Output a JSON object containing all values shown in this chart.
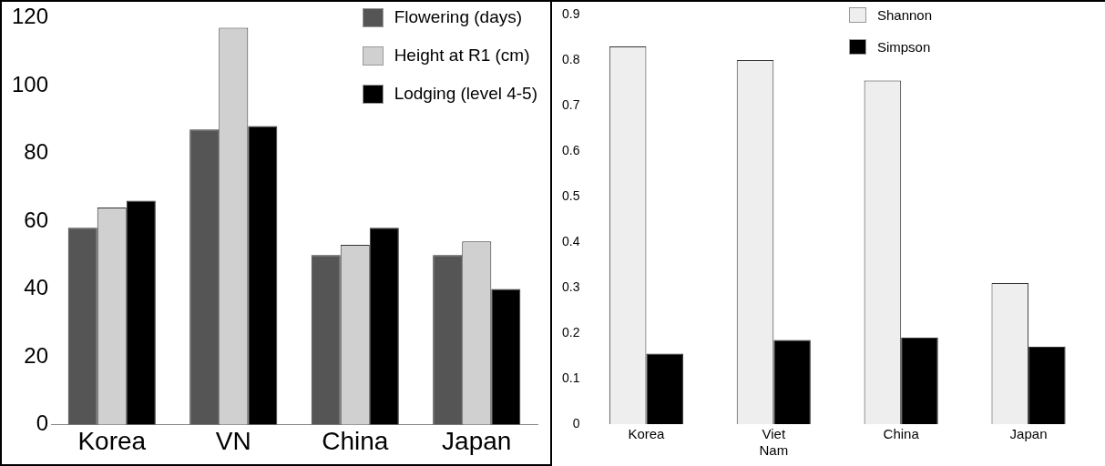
{
  "chart_data": [
    {
      "type": "bar",
      "categories": [
        "Korea",
        "VN",
        "China",
        "Japan"
      ],
      "series": [
        {
          "name": "Flowering (days)",
          "color": "#555555",
          "values": [
            58,
            87,
            50,
            50
          ]
        },
        {
          "name": "Height at R1 (cm)",
          "color": "#d0d0d0",
          "values": [
            64,
            117,
            53,
            54
          ]
        },
        {
          "name": "Lodging (level 4-5)",
          "color": "#000000",
          "values": [
            66,
            88,
            58,
            40
          ]
        }
      ],
      "ylim": [
        0,
        120
      ],
      "yticks": [
        0,
        20,
        40,
        60,
        80,
        100,
        120
      ],
      "grid": false,
      "legend": "top right"
    },
    {
      "type": "bar",
      "categories": [
        "Korea",
        "Viet Nam",
        "China",
        "Japan"
      ],
      "series": [
        {
          "name": "Shannon",
          "color": "#eeeeee",
          "values": [
            0.83,
            0.8,
            0.755,
            0.31
          ]
        },
        {
          "name": "Simpson",
          "color": "#000000",
          "values": [
            0.155,
            0.185,
            0.19,
            0.17
          ]
        }
      ],
      "ylim": [
        0,
        0.9
      ],
      "yticks": [
        0,
        0.1,
        0.2,
        0.3,
        0.4,
        0.5,
        0.6,
        0.7,
        0.8,
        0.9
      ],
      "grid": false,
      "legend": "top right"
    }
  ]
}
